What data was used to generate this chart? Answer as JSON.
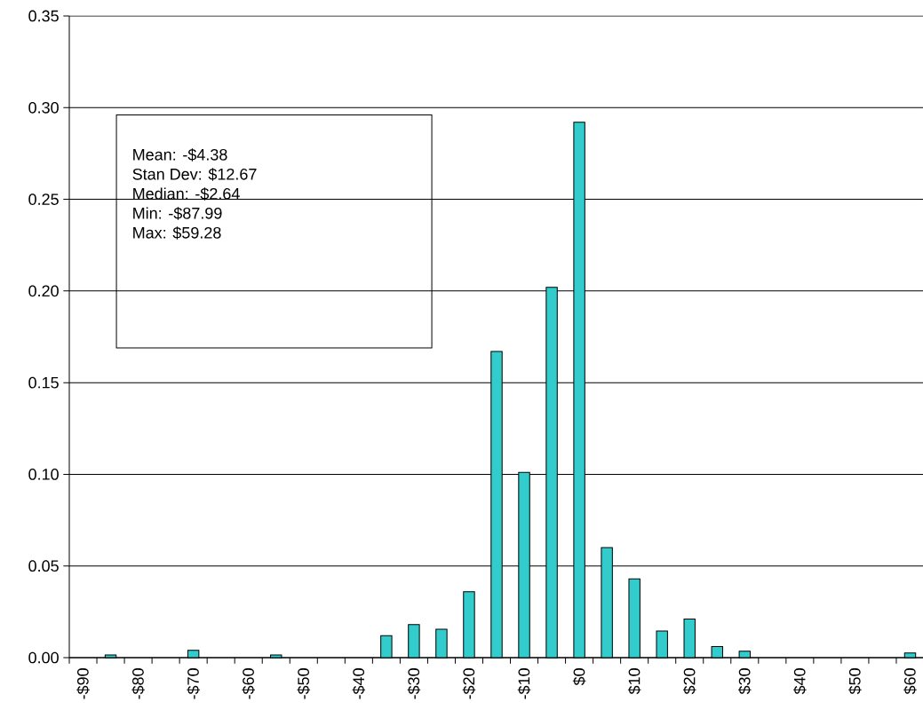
{
  "chart_data": {
    "type": "bar",
    "categories": [
      "-$90",
      null,
      "-$80",
      null,
      "-$70",
      null,
      "-$60",
      null,
      "-$50",
      null,
      "-$40",
      null,
      "-$30",
      null,
      "-$20",
      null,
      "-$10",
      null,
      "$0",
      null,
      "$10",
      null,
      "$20",
      null,
      "$30",
      null,
      "$40",
      null,
      "$50",
      null,
      "$60"
    ],
    "values": [
      null,
      0.0015,
      null,
      null,
      0.004,
      null,
      null,
      0.0015,
      null,
      null,
      null,
      0.012,
      0.018,
      0.0155,
      0.036,
      0.167,
      0.101,
      0.202,
      0.292,
      0.06,
      0.043,
      0.0145,
      0.021,
      0.006,
      0.0035,
      null,
      null,
      null,
      null,
      null,
      0.0025
    ],
    "color": "#33cccc",
    "ylim": [
      0,
      0.35
    ],
    "yticks": [
      {
        "value": 0,
        "label": "0.00"
      },
      {
        "value": 0.05,
        "label": "0.05"
      },
      {
        "value": 0.1,
        "label": "0.10"
      },
      {
        "value": 0.15,
        "label": "0.15"
      },
      {
        "value": 0.2,
        "label": "0.20"
      },
      {
        "value": 0.25,
        "label": "0.25"
      },
      {
        "value": 0.3,
        "label": "0.30"
      },
      {
        "value": 0.35,
        "label": "0.35"
      }
    ],
    "grid": "y",
    "annotations": [
      "Mean: -$4.38",
      "Stan Dev: $12.67",
      "Median: -$2.64",
      "Min: -$87.99",
      "Max: $59.28"
    ]
  }
}
